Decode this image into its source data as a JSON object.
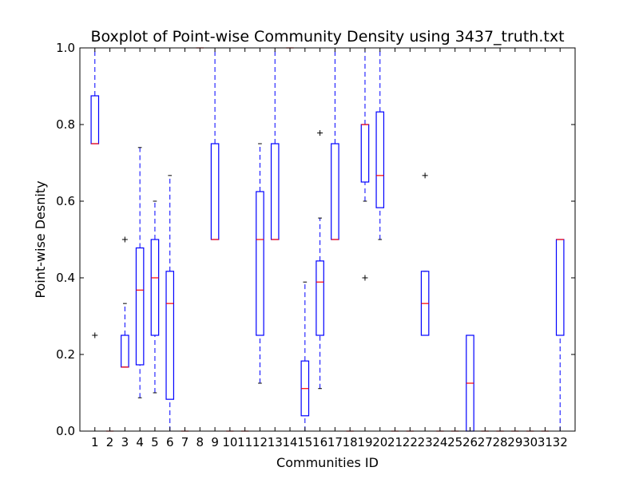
{
  "chart_data": {
    "type": "boxplot",
    "title": "Boxplot of Point-wise Community Density using 3437_truth.txt",
    "xlabel": "Communities ID",
    "ylabel": "Point-wise Desnity",
    "ylim": [
      0,
      1
    ],
    "yticks": [
      "0.0",
      "0.2",
      "0.4",
      "0.6",
      "0.8",
      "1.0"
    ],
    "grid": false,
    "colors": {
      "box": "#0000ff",
      "median": "#ff0000",
      "whisker": "#0000ff",
      "flier": "#000000"
    },
    "categories": [
      "1",
      "2",
      "3",
      "4",
      "5",
      "6",
      "7",
      "8",
      "9",
      "10",
      "11",
      "12",
      "13",
      "14",
      "15",
      "16",
      "17",
      "18",
      "19",
      "20",
      "21",
      "22",
      "23",
      "24",
      "25",
      "26",
      "27",
      "28",
      "29",
      "30",
      "31",
      "32"
    ],
    "boxes": [
      {
        "id": "1",
        "whislo": 0.75,
        "q1": 0.75,
        "med": 0.75,
        "q3": 0.875,
        "whishi": 1.0,
        "fliers": [
          0.25
        ]
      },
      {
        "id": "2",
        "whislo": 0.0,
        "q1": 0.0,
        "med": 0.0,
        "q3": 0.0,
        "whishi": 0.0,
        "fliers": []
      },
      {
        "id": "3",
        "whislo": 0.167,
        "q1": 0.167,
        "med": 0.167,
        "q3": 0.25,
        "whishi": 0.333,
        "fliers": [
          0.5
        ]
      },
      {
        "id": "4",
        "whislo": 0.087,
        "q1": 0.173,
        "med": 0.368,
        "q3": 0.478,
        "whishi": 0.74,
        "fliers": []
      },
      {
        "id": "5",
        "whislo": 0.1,
        "q1": 0.25,
        "med": 0.4,
        "q3": 0.5,
        "whishi": 0.6,
        "fliers": []
      },
      {
        "id": "6",
        "whislo": 0.0,
        "q1": 0.083,
        "med": 0.333,
        "q3": 0.417,
        "whishi": 0.667,
        "fliers": []
      },
      {
        "id": "7",
        "whislo": 0.0,
        "q1": 0.0,
        "med": 0.0,
        "q3": 0.0,
        "whishi": 0.0,
        "fliers": []
      },
      {
        "id": "8",
        "whislo": 1.0,
        "q1": 1.0,
        "med": 1.0,
        "q3": 1.0,
        "whishi": 1.0,
        "fliers": []
      },
      {
        "id": "9",
        "whislo": 0.5,
        "q1": 0.5,
        "med": 0.5,
        "q3": 0.75,
        "whishi": 1.0,
        "fliers": []
      },
      {
        "id": "10",
        "whislo": 0.0,
        "q1": 0.0,
        "med": 0.0,
        "q3": 0.0,
        "whishi": 0.0,
        "fliers": []
      },
      {
        "id": "11",
        "whislo": 0.0,
        "q1": 0.0,
        "med": 0.0,
        "q3": 0.0,
        "whishi": 0.0,
        "fliers": []
      },
      {
        "id": "12",
        "whislo": 0.125,
        "q1": 0.25,
        "med": 0.5,
        "q3": 0.625,
        "whishi": 0.75,
        "fliers": []
      },
      {
        "id": "13",
        "whislo": 0.5,
        "q1": 0.5,
        "med": 0.5,
        "q3": 0.75,
        "whishi": 1.0,
        "fliers": []
      },
      {
        "id": "14",
        "whislo": 1.0,
        "q1": 1.0,
        "med": 1.0,
        "q3": 1.0,
        "whishi": 1.0,
        "fliers": []
      },
      {
        "id": "15",
        "whislo": 0.0,
        "q1": 0.04,
        "med": 0.111,
        "q3": 0.183,
        "whishi": 0.389,
        "fliers": []
      },
      {
        "id": "16",
        "whislo": 0.111,
        "q1": 0.25,
        "med": 0.389,
        "q3": 0.444,
        "whishi": 0.556,
        "fliers": [
          0.778
        ]
      },
      {
        "id": "17",
        "whislo": 0.5,
        "q1": 0.5,
        "med": 0.5,
        "q3": 0.75,
        "whishi": 1.0,
        "fliers": []
      },
      {
        "id": "18",
        "whislo": 0.0,
        "q1": 0.0,
        "med": 0.0,
        "q3": 0.0,
        "whishi": 0.0,
        "fliers": []
      },
      {
        "id": "19",
        "whislo": 0.6,
        "q1": 0.65,
        "med": 0.8,
        "q3": 0.8,
        "whishi": 1.0,
        "fliers": [
          0.4
        ]
      },
      {
        "id": "20",
        "whislo": 0.5,
        "q1": 0.583,
        "med": 0.667,
        "q3": 0.833,
        "whishi": 1.0,
        "fliers": []
      },
      {
        "id": "21",
        "whislo": 0.0,
        "q1": 0.0,
        "med": 0.0,
        "q3": 0.0,
        "whishi": 0.0,
        "fliers": []
      },
      {
        "id": "22",
        "whislo": 0.0,
        "q1": 0.0,
        "med": 0.0,
        "q3": 0.0,
        "whishi": 0.0,
        "fliers": []
      },
      {
        "id": "23",
        "whislo": 0.25,
        "q1": 0.25,
        "med": 0.333,
        "q3": 0.417,
        "whishi": 0.417,
        "fliers": [
          0.667
        ]
      },
      {
        "id": "24",
        "whislo": 0.0,
        "q1": 0.0,
        "med": 0.0,
        "q3": 0.0,
        "whishi": 0.0,
        "fliers": []
      },
      {
        "id": "25",
        "whislo": 0.0,
        "q1": 0.0,
        "med": 0.0,
        "q3": 0.0,
        "whishi": 0.0,
        "fliers": []
      },
      {
        "id": "26",
        "whislo": 0.0,
        "q1": 0.0,
        "med": 0.125,
        "q3": 0.25,
        "whishi": 0.25,
        "fliers": []
      },
      {
        "id": "27",
        "whislo": 0.0,
        "q1": 0.0,
        "med": 0.0,
        "q3": 0.0,
        "whishi": 0.0,
        "fliers": []
      },
      {
        "id": "28",
        "whislo": 0.0,
        "q1": 0.0,
        "med": 0.0,
        "q3": 0.0,
        "whishi": 0.0,
        "fliers": []
      },
      {
        "id": "29",
        "whislo": 0.0,
        "q1": 0.0,
        "med": 0.0,
        "q3": 0.0,
        "whishi": 0.0,
        "fliers": []
      },
      {
        "id": "30",
        "whislo": 0.0,
        "q1": 0.0,
        "med": 0.0,
        "q3": 0.0,
        "whishi": 0.0,
        "fliers": []
      },
      {
        "id": "31",
        "whislo": 0.0,
        "q1": 0.0,
        "med": 0.0,
        "q3": 0.0,
        "whishi": 0.0,
        "fliers": []
      },
      {
        "id": "32",
        "whislo": 0.0,
        "q1": 0.25,
        "med": 0.5,
        "q3": 0.5,
        "whishi": 0.5,
        "fliers": []
      }
    ]
  }
}
